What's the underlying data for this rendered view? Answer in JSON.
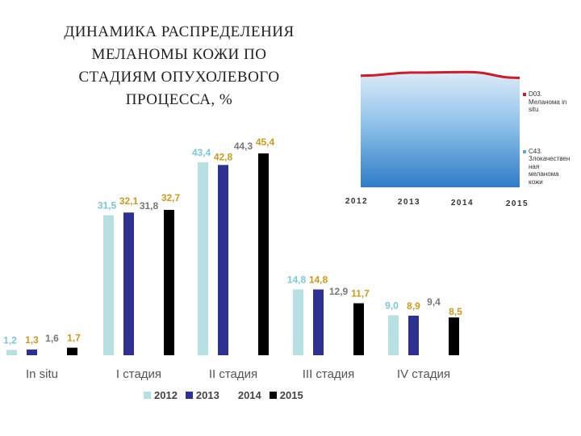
{
  "title_lines": [
    "ДИНАМИКА РАСПРЕДЕЛЕНИЯ",
    "МЕЛАНОМЫ КОЖИ ПО",
    "СТАДИЯМ ОПУХОЛЕВОГО",
    "ПРОЦЕССА, %"
  ],
  "colors": {
    "s2012": "#b6e0e2",
    "s2013": "#2e3192",
    "s2014": "#ffffff",
    "s2015": "#000000",
    "label2012": "#7ac8d6",
    "label2013": "#cc9a1c",
    "label2014": "#777777",
    "label2015": "#cc9a1c",
    "inset_area": "#5fa8dd",
    "inset_line": "#d01c2a"
  },
  "chart_data": [
    {
      "type": "bar",
      "categories": [
        "In situ",
        "I стадия",
        "II стадия",
        "III стадия",
        "IV стадия"
      ],
      "series": [
        {
          "name": "2012",
          "values": [
            1.2,
            31.5,
            43.4,
            14.8,
            9.0
          ],
          "labels": [
            "1,2",
            "31,5",
            "43,4",
            "14,8",
            "9,0"
          ]
        },
        {
          "name": "2013",
          "values": [
            1.3,
            32.1,
            42.8,
            14.8,
            8.9
          ],
          "labels": [
            "1,3",
            "32,1",
            "42,8",
            "14,8",
            "8,9"
          ]
        },
        {
          "name": "2014",
          "values": [
            1.6,
            31.8,
            44.3,
            12.9,
            9.4
          ],
          "labels": [
            "1,6",
            "31,8",
            "44,3",
            "12,9",
            "9,4"
          ]
        },
        {
          "name": "2015",
          "values": [
            1.7,
            32.7,
            45.4,
            11.7,
            8.5
          ],
          "labels": [
            "1,7",
            "32,7",
            "45,4",
            "11,7",
            "8,5"
          ]
        }
      ],
      "ylim": [
        0,
        45.4
      ],
      "grid": false,
      "legend": "bottom"
    },
    {
      "type": "area",
      "x": [
        "2012",
        "2013",
        "2014",
        "2015"
      ],
      "series": [
        {
          "name": "D03. Меланома in situ",
          "values": [
            1.2,
            1.3,
            1.6,
            1.7
          ]
        },
        {
          "name": "C43. Злокачественная меланома кожи",
          "values": [
            98.8,
            98.7,
            98.4,
            98.3
          ]
        }
      ],
      "ylim": [
        0,
        100
      ],
      "legend": "right"
    }
  ],
  "inset_legend": [
    {
      "lines": [
        "D03.",
        "Меланома in",
        "situ"
      ]
    },
    {
      "lines": [
        "C43.",
        "Злокачествен",
        "ная",
        "меланома",
        "кожи"
      ]
    }
  ]
}
